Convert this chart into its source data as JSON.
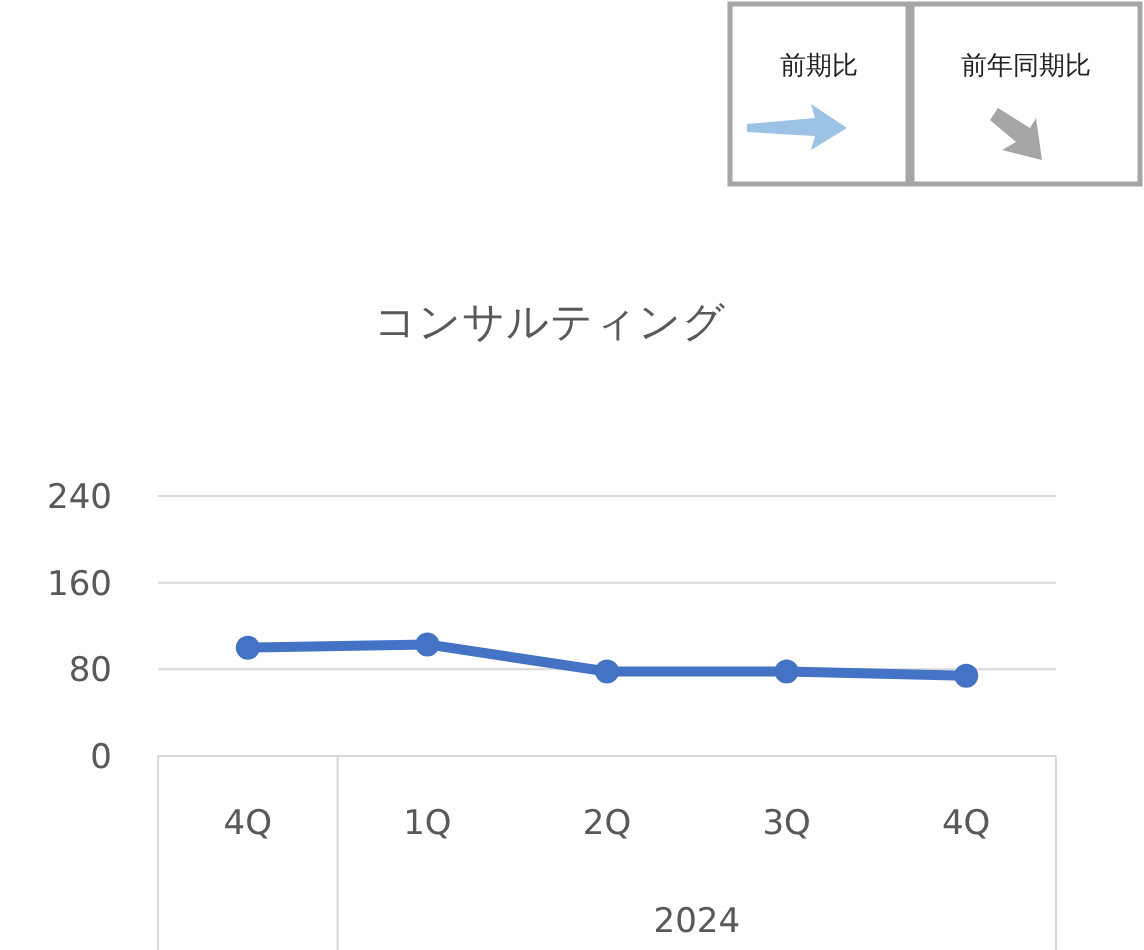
{
  "chart_data": [
    {
      "type": "other",
      "annotations": [
        "前期比",
        "前年同期比"
      ]
    },
    {
      "type": "line",
      "title": "コンサルティング",
      "xlabel": "2024",
      "categories": [
        "4Q",
        "1Q",
        "2Q",
        "3Q",
        "4Q"
      ],
      "series": [
        {
          "color": "#4472c4",
          "values": [
            100,
            103,
            78,
            78,
            74
          ]
        }
      ],
      "ylim": [
        0,
        240
      ],
      "yticks": [
        0,
        80,
        160,
        240
      ],
      "grid": "y",
      "marker": "circle",
      "line_style": "solid"
    }
  ]
}
